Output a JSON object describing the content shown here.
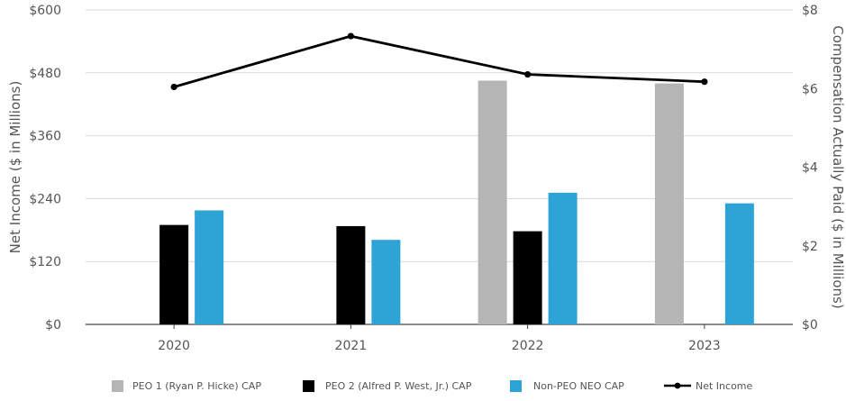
{
  "chart_data": {
    "type": "bar",
    "categories": [
      "2020",
      "2021",
      "2022",
      "2023"
    ],
    "ylabel_left": "Net Income ($ in Millions)",
    "ylabel_right": "Compensation Actually Paid ($ in Millions)",
    "ylim_left": [
      0,
      600
    ],
    "ylim_right": [
      0,
      8
    ],
    "yticks_left": [
      "$0",
      "$120",
      "$240",
      "$360",
      "$480",
      "$600"
    ],
    "yticks_right": [
      "$0",
      "$2",
      "$4",
      "$6",
      "$8"
    ],
    "grid": true,
    "legend_position": "bottom",
    "series": [
      {
        "name": "PEO 1 (Ryan P. Hicke) CAP",
        "type": "bar",
        "axis": "right",
        "color": "#b5b5b5",
        "values": [
          null,
          null,
          6.2,
          6.13
        ]
      },
      {
        "name": "PEO 2 (Alfred P. West, Jr.) CAP",
        "type": "bar",
        "axis": "right",
        "color": "#000000",
        "values": [
          2.53,
          2.5,
          2.37,
          null
        ]
      },
      {
        "name": "Non-PEO NEO CAP",
        "type": "bar",
        "axis": "right",
        "color": "#2ea3d6",
        "values": [
          2.9,
          2.15,
          3.35,
          3.08
        ]
      },
      {
        "name": "Net Income",
        "type": "line",
        "axis": "left",
        "color": "#000000",
        "values": [
          453,
          550,
          477,
          463
        ]
      }
    ]
  }
}
